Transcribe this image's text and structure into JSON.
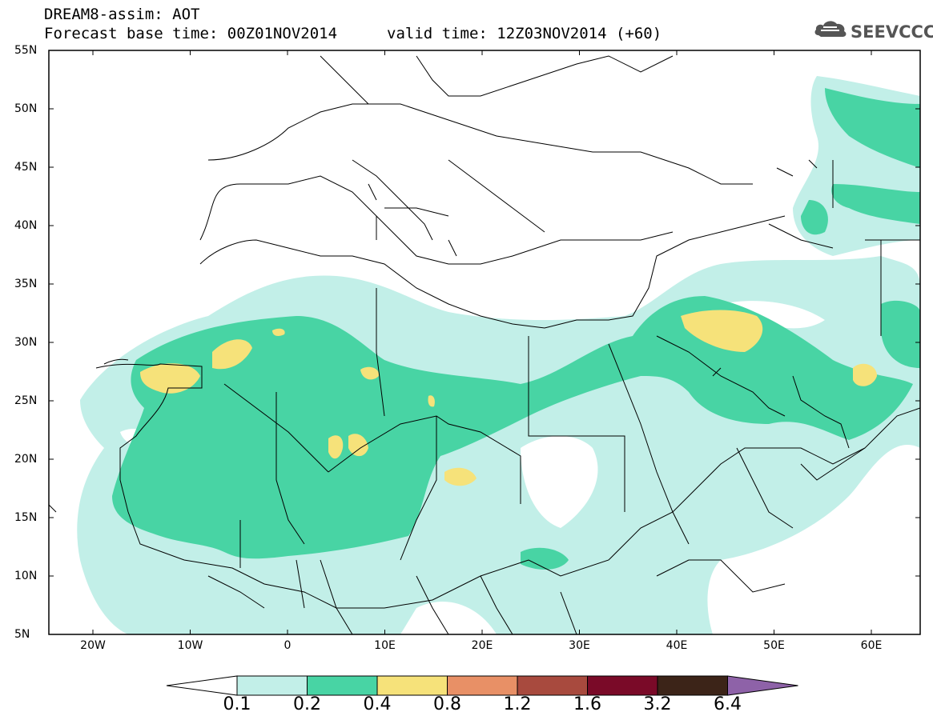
{
  "title": {
    "line1": "DREAM8-assim: AOT",
    "line2": "Forecast base time: 00Z01NOV2014",
    "line2b": "valid time: 12Z03NOV2014 (+60)"
  },
  "logo": {
    "text": "SEEVCCC",
    "icon": "cloud-logo-icon"
  },
  "map": {
    "lat_labels": [
      "55N",
      "50N",
      "45N",
      "40N",
      "35N",
      "30N",
      "25N",
      "20N",
      "15N",
      "10N",
      "5N"
    ],
    "lon_labels": [
      "20W",
      "10W",
      "0",
      "10E",
      "20E",
      "30E",
      "40E",
      "50E",
      "60E"
    ]
  },
  "colorbar": {
    "labels": [
      "0.1",
      "0.2",
      "0.4",
      "0.8",
      "1.2",
      "1.6",
      "3.2",
      "6.4"
    ],
    "colors": [
      "#ffffff",
      "#c2efe8",
      "#48d4a4",
      "#f6e27a",
      "#e89066",
      "#a84a3e",
      "#7a0a28",
      "#3c2418",
      "#8e62a8"
    ]
  }
}
